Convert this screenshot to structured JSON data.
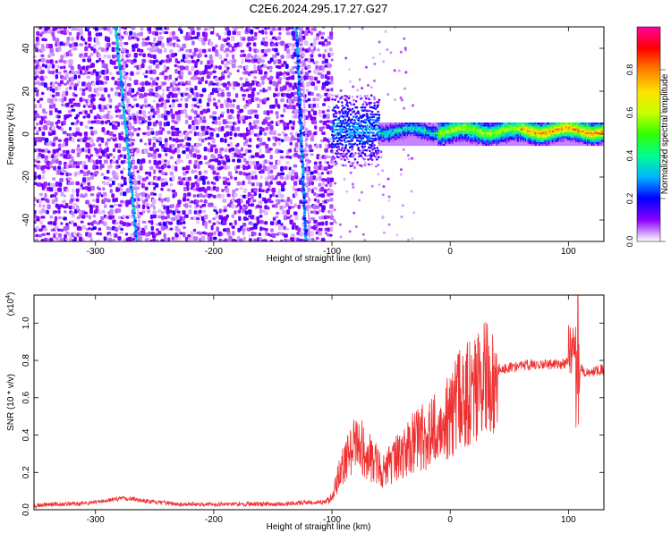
{
  "page": {
    "title": "C2E6.2024.295.17.27.G27"
  },
  "chart_data": [
    {
      "type": "heatmap",
      "xlabel": "Height of straight line (km)",
      "ylabel": "Frequency (Hz)",
      "xlim": [
        -352,
        130
      ],
      "ylim": [
        -50,
        50
      ],
      "xticks": [
        -300,
        -200,
        -100,
        0,
        100
      ],
      "yticks": [
        -40,
        -20,
        0,
        20,
        40
      ],
      "colorbar": {
        "label": "Normalized spectral amplitude",
        "range": [
          0,
          1
        ],
        "ticks": [
          "0.0",
          "0.2",
          "0.4",
          "0.6",
          "0.8"
        ],
        "colormap": [
          "#ffffff",
          "#8a00ff",
          "#0000ff",
          "#00b4ff",
          "#00ff90",
          "#30ff00",
          "#c8ff00",
          "#ffe000",
          "#ff8000",
          "#ff0000",
          "#ff00a0"
        ]
      },
      "regions": [
        {
          "description_x_range": [
            -352,
            -100
          ],
          "frequency_range": [
            -50,
            50
          ],
          "typical_amplitude": 0.12
        },
        {
          "description_x_range": [
            -100,
            -60
          ],
          "frequency_range": [
            -15,
            18
          ],
          "typical_amplitude": 0.2
        },
        {
          "description_x_range": [
            -60,
            130
          ],
          "frequency_range": [
            -5,
            5
          ],
          "typical_amplitude": 0.6
        }
      ],
      "streaks": [
        {
          "x_at_top": -283,
          "x_at_bottom": -265,
          "amplitude": 0.3
        },
        {
          "x_at_top": -130,
          "x_at_bottom": -122,
          "amplitude": 0.25
        }
      ],
      "grid": false
    },
    {
      "type": "line",
      "xlabel": "Height of straight line (km)",
      "ylabel": "SNR (10 * v/v)",
      "yscale_label": "(x10",
      "yscale_exponent": "4",
      "yscale_suffix": ")",
      "xlim": [
        -352,
        130
      ],
      "ylim": [
        0,
        1.15
      ],
      "xticks": [
        -300,
        -200,
        -100,
        0,
        100
      ],
      "yticks": [
        "0.0",
        "0.2",
        "0.4",
        "0.6",
        "0.8",
        "1.0"
      ],
      "color": "#f03030",
      "series": [
        {
          "x": [
            -352,
            -340,
            -320,
            -300,
            -290,
            -280,
            -270,
            -260,
            -250,
            -230,
            -200,
            -170,
            -140,
            -120,
            -105,
            -100,
            -95,
            -90,
            -85,
            -80,
            -75,
            -70,
            -65,
            -60,
            -55,
            -50,
            -45,
            -40,
            -35,
            -30,
            -25,
            -20,
            -15,
            -10,
            -5,
            0,
            5,
            10,
            15,
            20,
            25,
            30,
            35,
            40,
            50,
            60,
            70,
            80,
            90,
            95,
            100,
            103,
            105,
            107,
            108,
            110,
            112,
            115,
            120,
            125,
            130
          ],
          "y": [
            0.02,
            0.03,
            0.03,
            0.04,
            0.05,
            0.06,
            0.06,
            0.05,
            0.04,
            0.03,
            0.03,
            0.03,
            0.03,
            0.04,
            0.04,
            0.08,
            0.18,
            0.25,
            0.33,
            0.38,
            0.35,
            0.3,
            0.28,
            0.25,
            0.22,
            0.26,
            0.3,
            0.32,
            0.36,
            0.38,
            0.4,
            0.42,
            0.45,
            0.47,
            0.5,
            0.52,
            0.6,
            0.62,
            0.65,
            0.68,
            0.7,
            0.72,
            0.73,
            0.75,
            0.76,
            0.77,
            0.78,
            0.78,
            0.78,
            0.78,
            0.79,
            0.82,
            0.85,
            0.75,
            0.4,
            0.76,
            0.74,
            0.74,
            0.74,
            0.75,
            0.75
          ]
        }
      ],
      "grid": false
    }
  ]
}
